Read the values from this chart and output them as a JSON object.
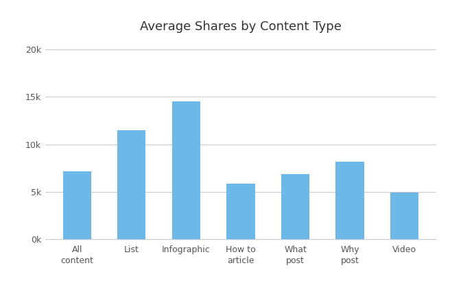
{
  "title": "Average Shares by Content Type",
  "categories": [
    "All\ncontent",
    "List",
    "Infographic",
    "How to\narticle",
    "What\npost",
    "Why\npost",
    "Video"
  ],
  "values": [
    7200,
    11500,
    14500,
    5900,
    6900,
    8200,
    4900
  ],
  "bar_color": "#6db8e8",
  "background_color": "#ffffff",
  "ylim": [
    0,
    21000
  ],
  "yticks": [
    0,
    5000,
    10000,
    15000,
    20000
  ],
  "ytick_labels": [
    "0k",
    "5k",
    "10k",
    "15k",
    "20k"
  ],
  "title_fontsize": 13,
  "tick_fontsize": 9,
  "grid_color": "#cccccc",
  "okdork_color": "#4caf50",
  "buzzsumo_color": "#4da6d8",
  "axis_color": "#cccccc",
  "text_color": "#555555"
}
